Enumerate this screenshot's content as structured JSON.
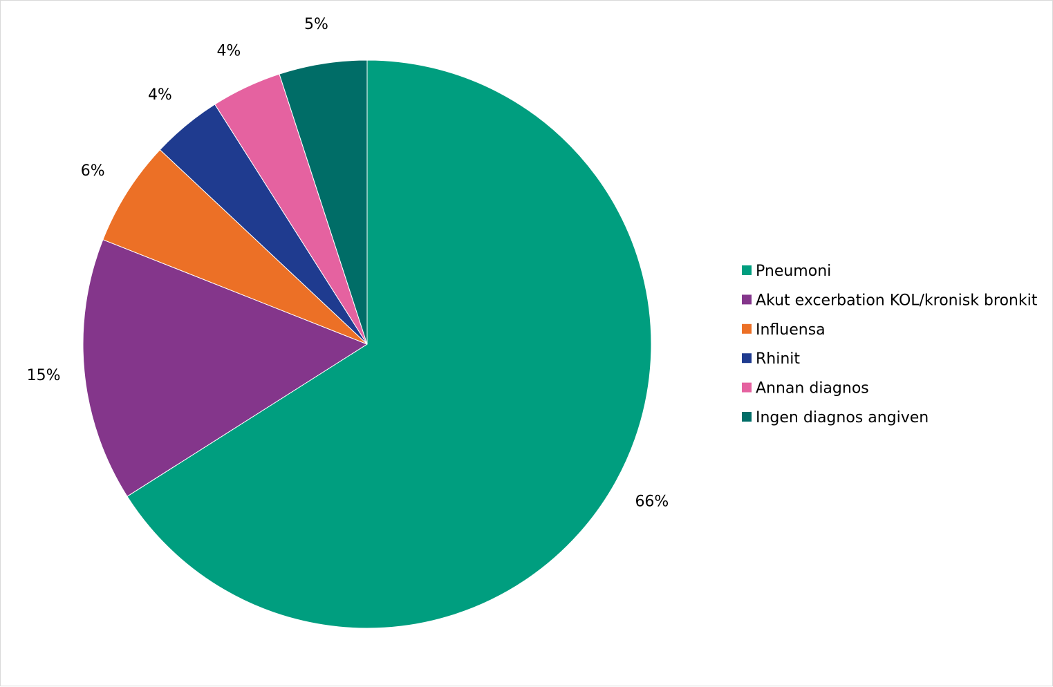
{
  "chart_data": {
    "type": "pie",
    "start_angle_deg": 0,
    "direction": "clockwise",
    "legend_position": "right",
    "slices": [
      {
        "label": "Pneumoni",
        "value": 66,
        "data_label": "66%",
        "color": "#009E7F"
      },
      {
        "label": "Akut excerbation KOL/kronisk bronkit",
        "value": 15,
        "data_label": "15%",
        "color": "#84368B"
      },
      {
        "label": "Influensa",
        "value": 6,
        "data_label": "6%",
        "color": "#EC7026"
      },
      {
        "label": "Rhinit",
        "value": 4,
        "data_label": "4%",
        "color": "#1F3B8F"
      },
      {
        "label": "Annan diagnos",
        "value": 4,
        "data_label": "4%",
        "color": "#E562A0"
      },
      {
        "label": "Ingen diagnos angiven",
        "value": 5,
        "data_label": "5%",
        "color": "#006D67"
      }
    ]
  }
}
